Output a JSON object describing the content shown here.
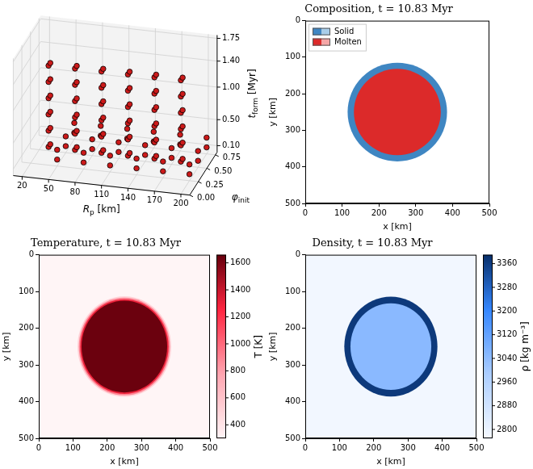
{
  "chart_data": [
    {
      "type": "scatter3d",
      "xlabel": {
        "main": "R",
        "sub": "p",
        "suffix": " [km]"
      },
      "ylabel": {
        "main": "φ",
        "sub": "init",
        "suffix": ""
      },
      "zlabel": {
        "main": "t",
        "sub": "form",
        "suffix": " [Myr]"
      },
      "xlim": [
        10,
        210
      ],
      "xticks": [
        20,
        50,
        80,
        110,
        140,
        170,
        200
      ],
      "ylim": [
        0,
        0.8
      ],
      "yticks": [
        {
          "value": 0,
          "label": "0.00"
        },
        {
          "value": 0.25,
          "label": "0.25"
        },
        {
          "value": 0.5,
          "label": "0.50"
        },
        {
          "value": 0.75,
          "label": "0.75"
        }
      ],
      "zlim": [
        0,
        1.8
      ],
      "zticks": [
        {
          "value": 0.1,
          "label": "0.10"
        },
        {
          "value": 0.5,
          "label": "0.50"
        },
        {
          "value": 1,
          "label": "1.00"
        },
        {
          "value": 1.4,
          "label": "1.40"
        },
        {
          "value": 1.75,
          "label": "1.75"
        }
      ],
      "grid": true,
      "color": "#cc1a1a",
      "marker": "circle",
      "points": [
        [
          50,
          0,
          0.5
        ],
        [
          50,
          0.05,
          0.5
        ],
        [
          50,
          0,
          0.75
        ],
        [
          50,
          0.05,
          0.75
        ],
        [
          50,
          0,
          1
        ],
        [
          50,
          0.05,
          1
        ],
        [
          50,
          0,
          1.25
        ],
        [
          50,
          0.05,
          1.25
        ],
        [
          50,
          0,
          1.5
        ],
        [
          50,
          0.05,
          1.5
        ],
        [
          50,
          0,
          1.75
        ],
        [
          50,
          0.05,
          1.75
        ],
        [
          50,
          0.25,
          0.1
        ],
        [
          50,
          0.5,
          0.1
        ],
        [
          50,
          0.75,
          0.1
        ],
        [
          50,
          0.25,
          0.25
        ],
        [
          50,
          0.5,
          0.25
        ],
        [
          50,
          0.75,
          0.25
        ],
        [
          80,
          0,
          0.5
        ],
        [
          80,
          0.05,
          0.5
        ],
        [
          80,
          0,
          0.75
        ],
        [
          80,
          0.05,
          0.75
        ],
        [
          80,
          0,
          1
        ],
        [
          80,
          0.05,
          1
        ],
        [
          80,
          0,
          1.25
        ],
        [
          80,
          0.05,
          1.25
        ],
        [
          80,
          0,
          1.5
        ],
        [
          80,
          0.05,
          1.5
        ],
        [
          80,
          0,
          1.75
        ],
        [
          80,
          0.05,
          1.75
        ],
        [
          80,
          0.25,
          0.1
        ],
        [
          80,
          0.5,
          0.1
        ],
        [
          80,
          0.75,
          0.1
        ],
        [
          80,
          0.25,
          0.25
        ],
        [
          80,
          0.5,
          0.25
        ],
        [
          80,
          0.75,
          0.25
        ],
        [
          110,
          0,
          0.5
        ],
        [
          110,
          0.05,
          0.5
        ],
        [
          110,
          0,
          0.75
        ],
        [
          110,
          0.05,
          0.75
        ],
        [
          110,
          0,
          1
        ],
        [
          110,
          0.05,
          1
        ],
        [
          110,
          0,
          1.25
        ],
        [
          110,
          0.05,
          1.25
        ],
        [
          110,
          0,
          1.5
        ],
        [
          110,
          0.05,
          1.5
        ],
        [
          110,
          0,
          1.75
        ],
        [
          110,
          0.05,
          1.75
        ],
        [
          110,
          0.25,
          0.1
        ],
        [
          110,
          0.5,
          0.1
        ],
        [
          110,
          0.75,
          0.1
        ],
        [
          110,
          0.25,
          0.25
        ],
        [
          110,
          0.5,
          0.25
        ],
        [
          110,
          0.75,
          0.25
        ],
        [
          140,
          0,
          0.5
        ],
        [
          140,
          0.05,
          0.5
        ],
        [
          140,
          0,
          0.75
        ],
        [
          140,
          0.05,
          0.75
        ],
        [
          140,
          0,
          1
        ],
        [
          140,
          0.05,
          1
        ],
        [
          140,
          0,
          1.25
        ],
        [
          140,
          0.05,
          1.25
        ],
        [
          140,
          0,
          1.5
        ],
        [
          140,
          0.05,
          1.5
        ],
        [
          140,
          0,
          1.75
        ],
        [
          140,
          0.05,
          1.75
        ],
        [
          140,
          0.25,
          0.1
        ],
        [
          140,
          0.5,
          0.1
        ],
        [
          140,
          0.75,
          0.1
        ],
        [
          140,
          0.25,
          0.25
        ],
        [
          140,
          0.5,
          0.25
        ],
        [
          140,
          0.75,
          0.25
        ],
        [
          170,
          0,
          0.5
        ],
        [
          170,
          0.05,
          0.5
        ],
        [
          170,
          0,
          0.75
        ],
        [
          170,
          0.05,
          0.75
        ],
        [
          170,
          0,
          1
        ],
        [
          170,
          0.05,
          1
        ],
        [
          170,
          0,
          1.25
        ],
        [
          170,
          0.05,
          1.25
        ],
        [
          170,
          0,
          1.5
        ],
        [
          170,
          0.05,
          1.5
        ],
        [
          170,
          0,
          1.75
        ],
        [
          170,
          0.05,
          1.75
        ],
        [
          170,
          0.25,
          0.1
        ],
        [
          170,
          0.5,
          0.1
        ],
        [
          170,
          0.75,
          0.1
        ],
        [
          170,
          0.25,
          0.25
        ],
        [
          170,
          0.5,
          0.25
        ],
        [
          170,
          0.75,
          0.25
        ],
        [
          200,
          0,
          0.5
        ],
        [
          200,
          0.05,
          0.5
        ],
        [
          200,
          0,
          0.75
        ],
        [
          200,
          0.05,
          0.75
        ],
        [
          200,
          0,
          1
        ],
        [
          200,
          0.05,
          1
        ],
        [
          200,
          0,
          1.25
        ],
        [
          200,
          0.05,
          1.25
        ],
        [
          200,
          0,
          1.5
        ],
        [
          200,
          0.05,
          1.5
        ],
        [
          200,
          0,
          1.75
        ],
        [
          200,
          0.05,
          1.75
        ],
        [
          200,
          0.25,
          0.1
        ],
        [
          200,
          0.5,
          0.1
        ],
        [
          200,
          0.75,
          0.1
        ],
        [
          200,
          0.25,
          0.25
        ],
        [
          200,
          0.5,
          0.25
        ],
        [
          200,
          0.75,
          0.25
        ]
      ]
    },
    {
      "type": "field",
      "title": "Composition, t = 10.83 Myr",
      "xlabel": "x [km]",
      "ylabel": "y [km]",
      "xlim": [
        0,
        500
      ],
      "xticks": [
        0,
        100,
        200,
        300,
        400,
        500
      ],
      "ylim": [
        500,
        0
      ],
      "yticks": [
        0,
        100,
        200,
        300,
        400,
        500
      ],
      "center": [
        250,
        250
      ],
      "legend": "upper left",
      "series": [
        {
          "name": "Solid",
          "colors": [
            "#3f86c2",
            "#a9cde9"
          ],
          "radius": 135
        },
        {
          "name": "Molten",
          "colors": [
            "#dc2a2a",
            "#f4a6a6"
          ],
          "radius": 118
        }
      ]
    },
    {
      "type": "heatmap",
      "title": "Temperature, t = 10.83 Myr",
      "xlabel": "x [km]",
      "ylabel": "y [km]",
      "xlim": [
        0,
        500
      ],
      "xticks": [
        0,
        100,
        200,
        300,
        400,
        500
      ],
      "ylim": [
        500,
        0
      ],
      "yticks": [
        0,
        100,
        200,
        300,
        400,
        500
      ],
      "center": [
        250,
        250
      ],
      "background_value": 300,
      "color": "#67000d",
      "rings": [
        {
          "radius": 137,
          "value": 500
        },
        {
          "radius": 133,
          "value": 900
        },
        {
          "radius": 129,
          "value": 1300
        },
        {
          "radius": 125,
          "value": 1650
        }
      ],
      "colorbar": {
        "label": "T [K]",
        "range": [
          300,
          1660
        ],
        "ticks": [
          400,
          600,
          800,
          1000,
          1200,
          1400,
          1600
        ]
      }
    },
    {
      "type": "heatmap",
      "title": "Density, t = 10.83 Myr",
      "xlabel": "x [km]",
      "ylabel": "y [km]",
      "xlim": [
        0,
        500
      ],
      "xticks": [
        0,
        100,
        200,
        300,
        400,
        500
      ],
      "ylim": [
        500,
        0
      ],
      "yticks": [
        0,
        100,
        200,
        300,
        400,
        500
      ],
      "center": [
        250,
        250
      ],
      "background_value": 2780,
      "color": "#08306b",
      "rings": [
        {
          "radius": 136,
          "value": 3370
        },
        {
          "radius": 118,
          "value": 3050
        }
      ],
      "colorbar": {
        "label": "ρ [kg m⁻³]",
        "range": [
          2770,
          3390
        ],
        "ticks": [
          2800,
          2880,
          2960,
          3040,
          3120,
          3200,
          3280,
          3360
        ]
      }
    }
  ]
}
